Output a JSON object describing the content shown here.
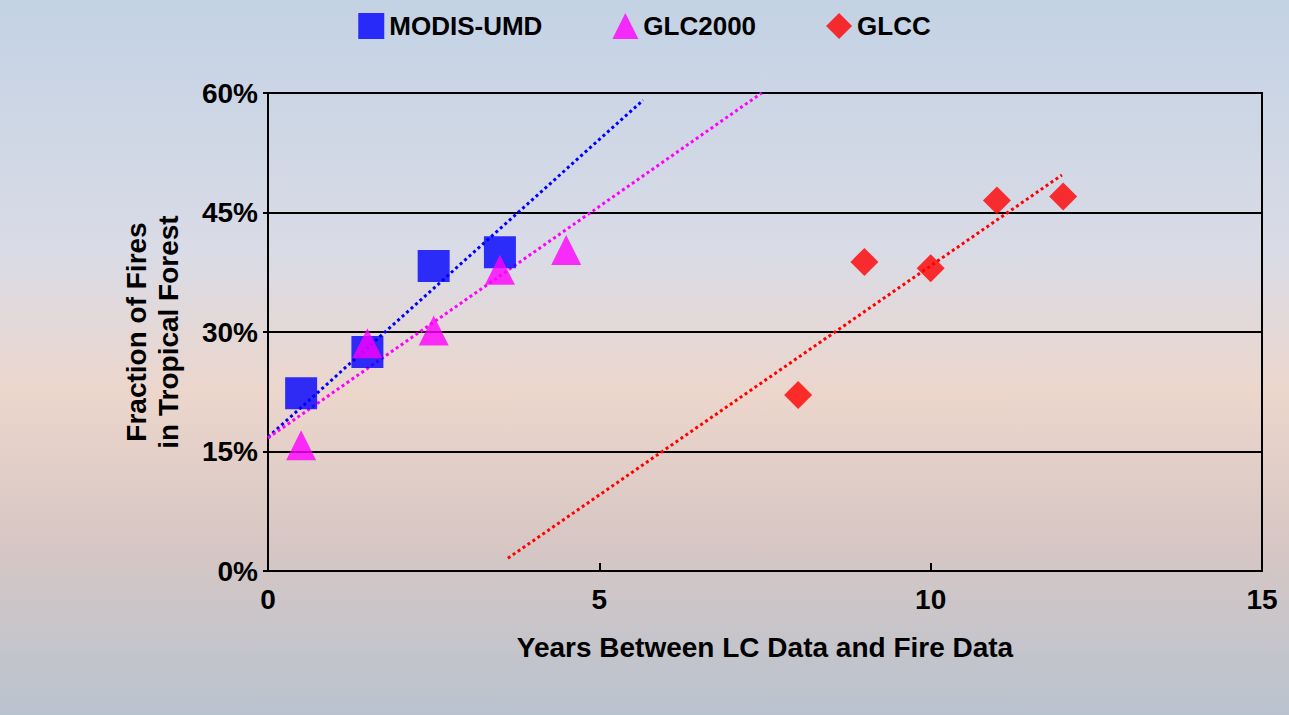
{
  "chart_data": {
    "type": "scatter",
    "x_label": "Years Between LC Data and Fire Data",
    "y_label": "Fraction of Fires in Tropical Forest",
    "xlim": [
      0,
      15
    ],
    "xticks": [
      0,
      5,
      10,
      15
    ],
    "ylim": [
      0,
      60
    ],
    "yticks": [
      {
        "value": 0,
        "label": "0%"
      },
      {
        "value": 15,
        "label": "15%"
      },
      {
        "value": 30,
        "label": "30%"
      },
      {
        "value": 45,
        "label": "45%"
      },
      {
        "value": 60,
        "label": "60%"
      }
    ],
    "grid": true,
    "legend": "top",
    "series": [
      {
        "name": "MODIS-UMD",
        "color": "#0000ff",
        "marker": "square",
        "line_style": "dotted",
        "x": [
          0.5,
          1.5,
          2.5,
          3.5
        ],
        "values": [
          22.3,
          27.5,
          38.3,
          40.0
        ],
        "trend": {
          "x": [
            0,
            5.66
          ],
          "values": [
            16.8,
            59.1
          ]
        }
      },
      {
        "name": "GLC2000",
        "color": "#ff00ff",
        "marker": "triangle",
        "line_style": "dotted",
        "x": [
          0.5,
          1.5,
          2.5,
          3.5,
          4.5
        ],
        "values": [
          15.8,
          28.6,
          30.2,
          37.8,
          40.3
        ],
        "trend": {
          "x": [
            0,
            7.45
          ],
          "values": [
            16.7,
            60.0
          ]
        }
      },
      {
        "name": "GLCC",
        "color": "#ff0000",
        "marker": "diamond",
        "line_style": "dotted",
        "x": [
          8,
          9,
          10,
          11,
          12
        ],
        "values": [
          22.1,
          38.8,
          38.0,
          46.5,
          47.0
        ],
        "trend": {
          "x": [
            3.62,
            11.98
          ],
          "values": [
            1.6,
            49.7
          ]
        }
      }
    ]
  }
}
